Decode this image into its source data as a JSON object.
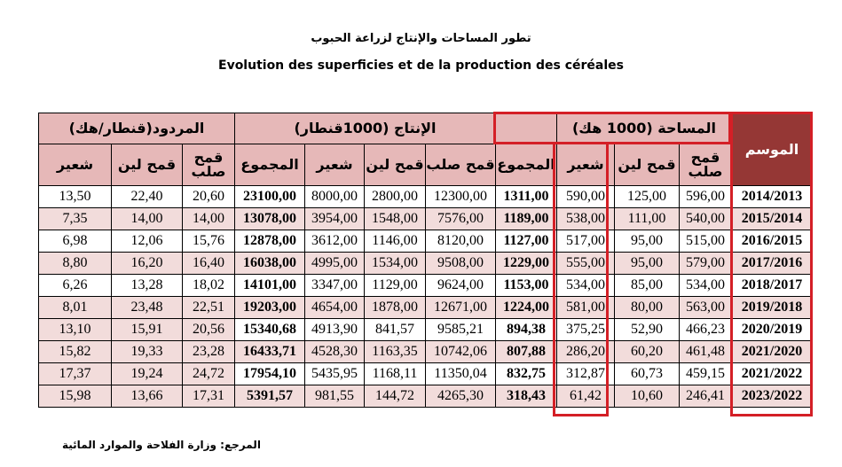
{
  "title_ar": "تطور المساحات والإنتاج لزراعة الحبوب",
  "title_fr": "Evolution des superficies et de la production des céréales",
  "groups": {
    "yield": "المردود(قنطار/هك)",
    "production": "الإنتاج (1000قنطار)",
    "area": "المساحة (1000 هك)",
    "season": "الموسم"
  },
  "subheaders": {
    "yield_barley": "شعير",
    "yield_soft_wheat": "قمح لين",
    "yield_durum_wheat": "قمح صلب",
    "prod_total": "المجموع",
    "prod_barley": "شعير",
    "prod_soft_wheat": "قمح لين",
    "prod_durum_wheat": "قمح صلب",
    "area_total": "المجموع",
    "area_barley": "شعير",
    "area_soft_wheat": "قمح لين",
    "area_durum_wheat": "قمح صلب"
  },
  "rows": [
    {
      "yield_barley": "13,50",
      "yield_soft": "22,40",
      "yield_durum": "20,60",
      "prod_total": "23100,00",
      "prod_barley": "8000,00",
      "prod_soft": "2800,00",
      "prod_durum": "12300,00",
      "area_total": "1311,00",
      "area_barley": "590,00",
      "area_soft": "125,00",
      "area_durum": "596,00",
      "season": "2014/2013"
    },
    {
      "yield_barley": "7,35",
      "yield_soft": "14,00",
      "yield_durum": "14,00",
      "prod_total": "13078,00",
      "prod_barley": "3954,00",
      "prod_soft": "1548,00",
      "prod_durum": "7576,00",
      "area_total": "1189,00",
      "area_barley": "538,00",
      "area_soft": "111,00",
      "area_durum": "540,00",
      "season": "2015/2014"
    },
    {
      "yield_barley": "6,98",
      "yield_soft": "12,06",
      "yield_durum": "15,76",
      "prod_total": "12878,00",
      "prod_barley": "3612,00",
      "prod_soft": "1146,00",
      "prod_durum": "8120,00",
      "area_total": "1127,00",
      "area_barley": "517,00",
      "area_soft": "95,00",
      "area_durum": "515,00",
      "season": "2016/2015"
    },
    {
      "yield_barley": "8,80",
      "yield_soft": "16,20",
      "yield_durum": "16,40",
      "prod_total": "16038,00",
      "prod_barley": "4995,00",
      "prod_soft": "1534,00",
      "prod_durum": "9508,00",
      "area_total": "1229,00",
      "area_barley": "555,00",
      "area_soft": "95,00",
      "area_durum": "579,00",
      "season": "2017/2016"
    },
    {
      "yield_barley": "6,26",
      "yield_soft": "13,28",
      "yield_durum": "18,02",
      "prod_total": "14101,00",
      "prod_barley": "3347,00",
      "prod_soft": "1129,00",
      "prod_durum": "9624,00",
      "area_total": "1153,00",
      "area_barley": "534,00",
      "area_soft": "85,00",
      "area_durum": "534,00",
      "season": "2018/2017"
    },
    {
      "yield_barley": "8,01",
      "yield_soft": "23,48",
      "yield_durum": "22,51",
      "prod_total": "19203,00",
      "prod_barley": "4654,00",
      "prod_soft": "1878,00",
      "prod_durum": "12671,00",
      "area_total": "1224,00",
      "area_barley": "581,00",
      "area_soft": "80,00",
      "area_durum": "563,00",
      "season": "2019/2018"
    },
    {
      "yield_barley": "13,10",
      "yield_soft": "15,91",
      "yield_durum": "20,56",
      "prod_total": "15340,68",
      "prod_barley": "4913,90",
      "prod_soft": "841,57",
      "prod_durum": "9585,21",
      "area_total": "894,38",
      "area_barley": "375,25",
      "area_soft": "52,90",
      "area_durum": "466,23",
      "season": "2020/2019"
    },
    {
      "yield_barley": "15,82",
      "yield_soft": "19,33",
      "yield_durum": "23,28",
      "prod_total": "16433,71",
      "prod_barley": "4528,30",
      "prod_soft": "1163,35",
      "prod_durum": "10742,06",
      "area_total": "807,88",
      "area_barley": "286,20",
      "area_soft": "60,20",
      "area_durum": "461,48",
      "season": "2021/2020"
    },
    {
      "yield_barley": "17,37",
      "yield_soft": "19,24",
      "yield_durum": "24,72",
      "prod_total": "17954,10",
      "prod_barley": "5435,95",
      "prod_soft": "1168,11",
      "prod_durum": "11350,04",
      "area_total": "832,75",
      "area_barley": "312,87",
      "area_soft": "60,73",
      "area_durum": "459,15",
      "season": "2021/2022"
    },
    {
      "yield_barley": "15,98",
      "yield_soft": "13,66",
      "yield_durum": "17,31",
      "prod_total": "5391,57",
      "prod_barley": "981,55",
      "prod_soft": "144,72",
      "prod_durum": "4265,30",
      "area_total": "318,43",
      "area_barley": "61,42",
      "area_soft": "10,60",
      "area_durum": "246,41",
      "season": "2023/2022"
    }
  ],
  "source": "المرجع: وزارة الفلاحة والموارد المائية",
  "colors": {
    "header_pink": "#e6b8b8",
    "row_pink": "#f2dcdb",
    "season_header": "#953735",
    "highlight_red": "#d41f26"
  }
}
